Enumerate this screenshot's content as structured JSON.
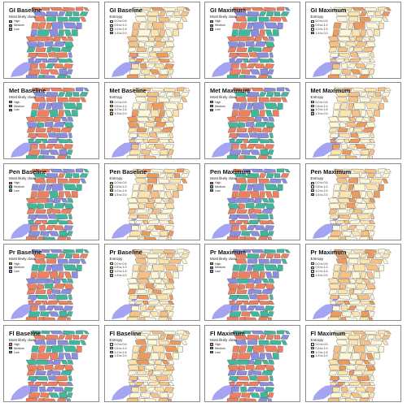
{
  "classification": {
    "legend_title": "Most likely class",
    "items": [
      {
        "label": "High",
        "color": "#f07f5f"
      },
      {
        "label": "Medium",
        "color": "#3fb99c"
      },
      {
        "label": "Low",
        "color": "#8b8ee0"
      }
    ]
  },
  "entropy": {
    "legend_title": "Entropy",
    "items": [
      {
        "label": "0.0 to 0.5",
        "color": "#fff8d8"
      },
      {
        "label": "0.5 to 1.0",
        "color": "#fde4ad"
      },
      {
        "label": "1.0 to 1.5",
        "color": "#f8c184"
      },
      {
        "label": "1.5 to 2.0",
        "color": "#ee9a5a"
      }
    ]
  },
  "colors": {
    "water": "#a4a4f2",
    "outline": "#4a4a4a",
    "panel_border": "#8c8c8c"
  },
  "panels": [
    {
      "title": "GI Baseline",
      "kind": "class"
    },
    {
      "title": "GI Baseline",
      "kind": "entropy"
    },
    {
      "title": "GI Maximum",
      "kind": "class"
    },
    {
      "title": "GI Maximum",
      "kind": "entropy"
    },
    {
      "title": "Met Baseline",
      "kind": "class"
    },
    {
      "title": "Met Baseline",
      "kind": "entropy"
    },
    {
      "title": "Met Maximum",
      "kind": "class"
    },
    {
      "title": "Met Maximum",
      "kind": "entropy"
    },
    {
      "title": "Pen Baseline",
      "kind": "class"
    },
    {
      "title": "Pen Baseline",
      "kind": "entropy"
    },
    {
      "title": "Pen Maximum",
      "kind": "class"
    },
    {
      "title": "Pen Maximum",
      "kind": "entropy"
    },
    {
      "title": "Pr Baseline",
      "kind": "class"
    },
    {
      "title": "Pr Baseline",
      "kind": "entropy"
    },
    {
      "title": "Pr Maximum",
      "kind": "class"
    },
    {
      "title": "Pr Maximum",
      "kind": "entropy"
    },
    {
      "title": "Fl Baseline",
      "kind": "class"
    },
    {
      "title": "Fl Baseline",
      "kind": "entropy"
    },
    {
      "title": "Fl Maximum",
      "kind": "class"
    },
    {
      "title": "Fl Maximum",
      "kind": "entropy"
    }
  ]
}
